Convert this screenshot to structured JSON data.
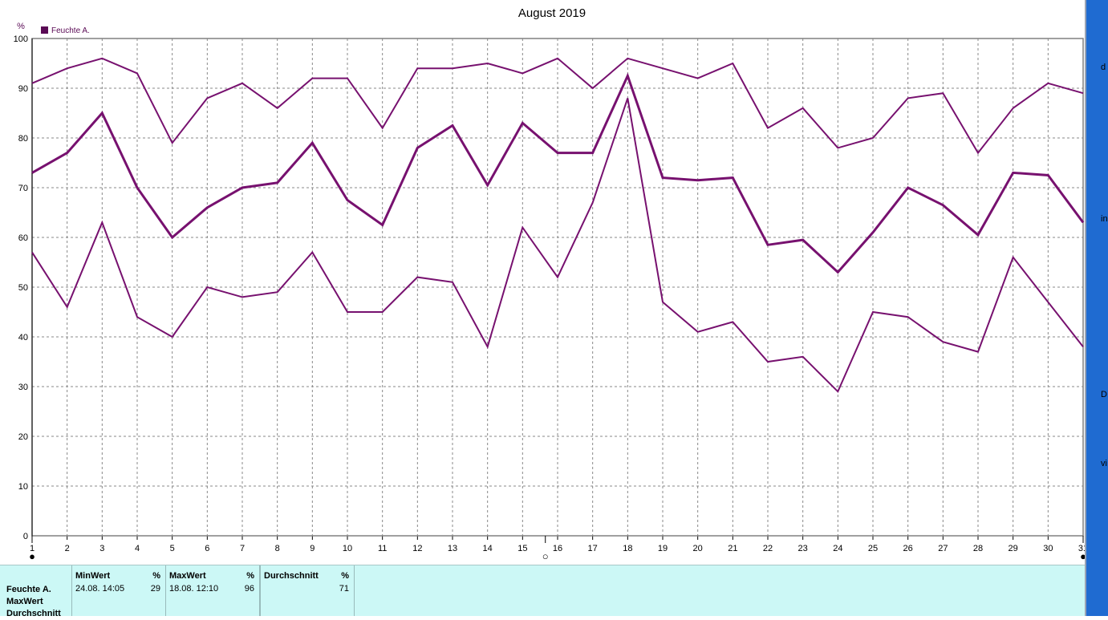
{
  "colors": {
    "series": "#77116f",
    "legend_swatch": "#5a0a55",
    "grid": "#888888",
    "axis": "#808080",
    "panel_bg": "#ccf8f6",
    "right_strip": "#1f6bd1"
  },
  "chart_data": {
    "type": "line",
    "title": "August 2019",
    "ylabel": "%",
    "xlabel": "",
    "ylim": [
      0,
      100
    ],
    "yticks": [
      0,
      10,
      20,
      30,
      40,
      50,
      60,
      70,
      80,
      90,
      100
    ],
    "x": [
      1,
      2,
      3,
      4,
      5,
      6,
      7,
      8,
      9,
      10,
      11,
      12,
      13,
      14,
      15,
      16,
      17,
      18,
      19,
      20,
      21,
      22,
      23,
      24,
      25,
      26,
      27,
      28,
      29,
      30,
      31
    ],
    "xlim": [
      1,
      31
    ],
    "grid": true,
    "legend": {
      "label": "Feuchte A.",
      "placement": "top-left"
    },
    "series": [
      {
        "name": "Feuchte A.",
        "role": "max",
        "values": [
          91,
          94,
          96,
          93,
          79,
          88,
          91,
          86,
          92,
          92,
          82,
          94,
          94,
          95,
          93,
          96,
          90,
          96,
          94,
          92,
          95,
          82,
          86,
          78,
          80,
          88,
          89,
          77,
          86,
          91,
          89
        ]
      },
      {
        "name": "Feuchte A.",
        "role": "avg",
        "values": [
          73,
          77,
          85,
          70,
          60,
          66,
          70,
          71,
          79,
          67.5,
          62.5,
          78,
          82.5,
          70.5,
          83,
          77,
          77,
          92.5,
          72,
          71.5,
          72,
          58.5,
          59.5,
          53,
          61,
          70,
          66.5,
          60.5,
          73,
          72.5,
          63
        ]
      },
      {
        "name": "Feuchte A.",
        "role": "min",
        "values": [
          57,
          46,
          63,
          44,
          40,
          50,
          48,
          49,
          57,
          45,
          45,
          52,
          51,
          38,
          62,
          52,
          67,
          88,
          47,
          41,
          43,
          35,
          36,
          29,
          45,
          44,
          39,
          37,
          56,
          47,
          38
        ]
      }
    ],
    "moon_markers": [
      {
        "day": 1,
        "symbol": "●"
      },
      {
        "day": 15.65,
        "symbol": "○"
      },
      {
        "day": 31,
        "symbol": "●"
      }
    ]
  },
  "stats": {
    "row_labels": [
      "Feuchte A.",
      "MaxWert",
      "Durchschnitt"
    ],
    "columns": [
      {
        "header": "MinWert",
        "unit": "%",
        "when": "24.08.  14:05",
        "value": "29"
      },
      {
        "header": "MaxWert",
        "unit": "%",
        "when": "18.08.  12:10",
        "value": "96"
      },
      {
        "header": "Durchschnitt",
        "unit": "%",
        "when": "",
        "value": "71"
      }
    ]
  },
  "right_strip": {
    "letters": [
      "d",
      "in",
      "D",
      "vi"
    ]
  }
}
